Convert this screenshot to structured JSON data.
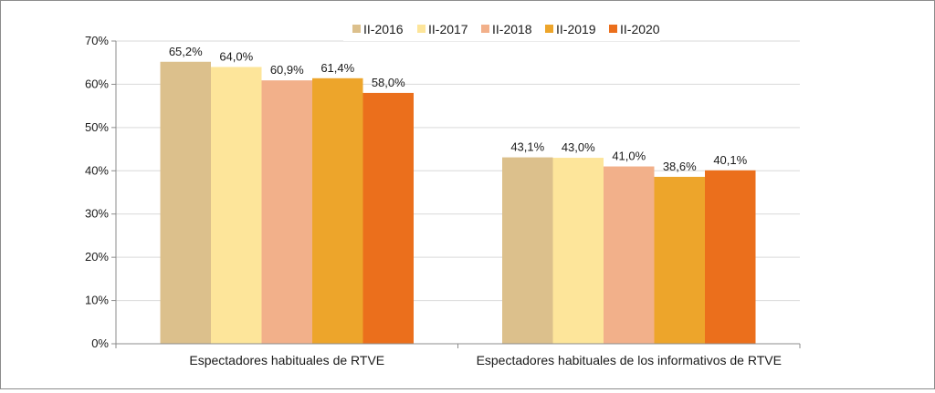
{
  "chart_data": {
    "type": "bar",
    "categories": [
      "Espectadores habituales de RTVE",
      "Espectadores habituales de los informativos de RTVE"
    ],
    "series": [
      {
        "name": "II-2016",
        "values": [
          65.2,
          43.1
        ],
        "labels": [
          "65,2%",
          "43,1%"
        ],
        "color": "#dcc08c"
      },
      {
        "name": "II-2017",
        "values": [
          64.0,
          43.0
        ],
        "labels": [
          "64,0%",
          "43,0%"
        ],
        "color": "#fde59a"
      },
      {
        "name": "II-2018",
        "values": [
          60.9,
          41.0
        ],
        "labels": [
          "60,9%",
          "41,0%"
        ],
        "color": "#f2b08a"
      },
      {
        "name": "II-2019",
        "values": [
          61.4,
          38.6
        ],
        "labels": [
          "61,4%",
          "38,6%"
        ],
        "color": "#eda52b"
      },
      {
        "name": "II-2020",
        "values": [
          58.0,
          40.1
        ],
        "labels": [
          "58,0%",
          "40,1%"
        ],
        "color": "#eb6f1c"
      }
    ],
    "yticks": [
      "0%",
      "10%",
      "20%",
      "30%",
      "40%",
      "50%",
      "60%",
      "70%"
    ],
    "ylim": [
      0,
      70
    ],
    "grid": true,
    "legend": "top-center",
    "title": "",
    "xlabel": "",
    "ylabel": ""
  }
}
